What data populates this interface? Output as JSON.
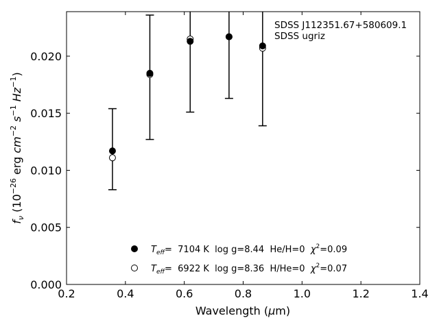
{
  "chart_data": {
    "type": "scatter",
    "xlabel": "Wavelength (μm)",
    "ylabel": "f_ν (10^-26 erg cm^-2 s^-1 Hz^-1)",
    "xlim": [
      0.2,
      1.4
    ],
    "ylim": [
      0.0,
      0.0239
    ],
    "xticks": [
      "0.2",
      "0.4",
      "0.6",
      "0.8",
      "1.0",
      "1.2",
      "1.4"
    ],
    "yticks": [
      "0.000",
      "0.005",
      "0.010",
      "0.015",
      "0.020"
    ],
    "grid": false,
    "annotation": {
      "line1": "SDSS J112351.67+580609.1",
      "line2": "SDSS ugriz"
    },
    "observed": {
      "bands": [
        "u",
        "g",
        "r",
        "i",
        "z"
      ],
      "x": [
        0.356,
        0.483,
        0.62,
        0.752,
        0.866
      ],
      "y": [
        0.01185,
        0.01815,
        0.0215,
        0.02165,
        0.0208
      ],
      "err_low": [
        0.0083,
        0.0127,
        0.0151,
        0.0163,
        0.0139
      ],
      "err_high": [
        0.0154,
        0.0236,
        0.0239,
        0.0239,
        0.0239
      ]
    },
    "series": [
      {
        "marker": "filled-circle",
        "x": [
          0.356,
          0.483,
          0.62,
          0.752,
          0.866
        ],
        "y": [
          0.0117,
          0.0185,
          0.0213,
          0.0217,
          0.0209
        ],
        "legend": {
          "teff_sym": "T",
          "teff_sub": "eff",
          "rest": "=  7104 K  log g=8.44  He/H=0  ",
          "chi_sym": "χ",
          "chi_sup": "2",
          "chi_val": "=0.09"
        }
      },
      {
        "marker": "open-circle",
        "x": [
          0.356,
          0.483,
          0.62,
          0.752,
          0.866
        ],
        "y": [
          0.0111,
          0.0184,
          0.0215,
          0.0217,
          0.0207
        ],
        "legend": {
          "teff_sym": "T",
          "teff_sub": "eff",
          "rest": "=  6922 K  log g=8.36  H/He=0  ",
          "chi_sym": "χ",
          "chi_sup": "2",
          "chi_val": "=0.07"
        }
      }
    ]
  }
}
